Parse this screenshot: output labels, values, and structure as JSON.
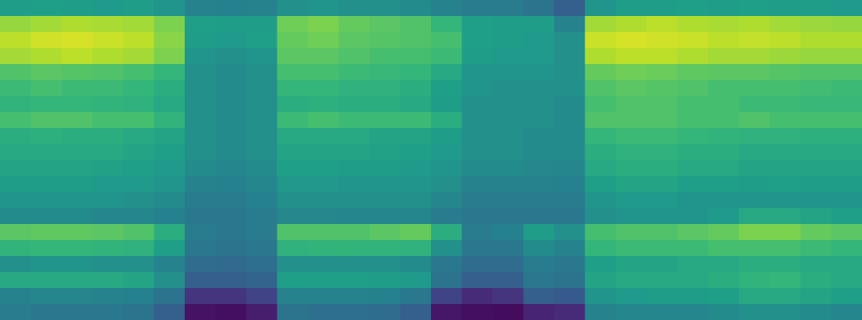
{
  "chart_data": {
    "type": "heatmap",
    "tick_labels": false,
    "zlim": [
      0,
      1
    ],
    "z": [
      [
        0.55,
        0.56,
        0.55,
        0.54,
        0.55,
        0.52,
        0.45,
        0.44,
        0.45,
        0.5,
        0.52,
        0.5,
        0.5,
        0.48,
        0.45,
        0.42,
        0.42,
        0.38,
        0.3,
        0.52,
        0.55,
        0.55,
        0.56,
        0.55,
        0.56,
        0.55,
        0.55,
        0.54
      ],
      [
        0.84,
        0.86,
        0.88,
        0.87,
        0.86,
        0.8,
        0.56,
        0.55,
        0.55,
        0.78,
        0.8,
        0.76,
        0.74,
        0.72,
        0.66,
        0.56,
        0.55,
        0.55,
        0.45,
        0.86,
        0.88,
        0.9,
        0.88,
        0.87,
        0.88,
        0.86,
        0.85,
        0.84
      ],
      [
        0.9,
        0.93,
        0.94,
        0.92,
        0.9,
        0.82,
        0.55,
        0.54,
        0.56,
        0.76,
        0.78,
        0.74,
        0.73,
        0.72,
        0.7,
        0.56,
        0.55,
        0.54,
        0.5,
        0.92,
        0.94,
        0.93,
        0.92,
        0.9,
        0.91,
        0.9,
        0.88,
        0.88
      ],
      [
        0.86,
        0.88,
        0.9,
        0.88,
        0.86,
        0.8,
        0.52,
        0.5,
        0.52,
        0.74,
        0.74,
        0.72,
        0.7,
        0.7,
        0.68,
        0.55,
        0.54,
        0.54,
        0.5,
        0.88,
        0.9,
        0.9,
        0.88,
        0.86,
        0.86,
        0.85,
        0.84,
        0.84
      ],
      [
        0.72,
        0.74,
        0.73,
        0.72,
        0.7,
        0.66,
        0.5,
        0.48,
        0.5,
        0.7,
        0.7,
        0.68,
        0.67,
        0.66,
        0.6,
        0.52,
        0.52,
        0.52,
        0.5,
        0.76,
        0.78,
        0.77,
        0.75,
        0.74,
        0.74,
        0.73,
        0.72,
        0.72
      ],
      [
        0.68,
        0.7,
        0.68,
        0.68,
        0.66,
        0.62,
        0.5,
        0.48,
        0.5,
        0.66,
        0.66,
        0.64,
        0.64,
        0.62,
        0.56,
        0.52,
        0.5,
        0.5,
        0.5,
        0.72,
        0.74,
        0.73,
        0.72,
        0.7,
        0.7,
        0.7,
        0.69,
        0.68
      ],
      [
        0.65,
        0.66,
        0.66,
        0.65,
        0.64,
        0.6,
        0.5,
        0.48,
        0.5,
        0.62,
        0.63,
        0.62,
        0.62,
        0.6,
        0.55,
        0.5,
        0.5,
        0.5,
        0.48,
        0.7,
        0.72,
        0.72,
        0.7,
        0.7,
        0.68,
        0.68,
        0.67,
        0.67
      ],
      [
        0.7,
        0.72,
        0.72,
        0.7,
        0.7,
        0.65,
        0.5,
        0.48,
        0.5,
        0.68,
        0.7,
        0.68,
        0.68,
        0.68,
        0.62,
        0.5,
        0.5,
        0.5,
        0.48,
        0.72,
        0.72,
        0.72,
        0.7,
        0.7,
        0.72,
        0.7,
        0.7,
        0.7
      ],
      [
        0.62,
        0.63,
        0.62,
        0.62,
        0.6,
        0.58,
        0.5,
        0.48,
        0.5,
        0.6,
        0.6,
        0.6,
        0.58,
        0.58,
        0.55,
        0.5,
        0.5,
        0.48,
        0.48,
        0.66,
        0.68,
        0.68,
        0.66,
        0.65,
        0.64,
        0.64,
        0.63,
        0.63
      ],
      [
        0.6,
        0.6,
        0.6,
        0.6,
        0.58,
        0.56,
        0.5,
        0.48,
        0.5,
        0.58,
        0.58,
        0.58,
        0.57,
        0.56,
        0.54,
        0.5,
        0.5,
        0.48,
        0.48,
        0.62,
        0.64,
        0.64,
        0.62,
        0.62,
        0.6,
        0.6,
        0.6,
        0.6
      ],
      [
        0.58,
        0.58,
        0.58,
        0.57,
        0.56,
        0.54,
        0.48,
        0.46,
        0.48,
        0.56,
        0.56,
        0.55,
        0.55,
        0.54,
        0.52,
        0.48,
        0.48,
        0.47,
        0.46,
        0.6,
        0.62,
        0.62,
        0.6,
        0.6,
        0.58,
        0.58,
        0.58,
        0.58
      ],
      [
        0.55,
        0.55,
        0.55,
        0.54,
        0.54,
        0.52,
        0.45,
        0.44,
        0.46,
        0.53,
        0.53,
        0.52,
        0.52,
        0.52,
        0.5,
        0.45,
        0.45,
        0.45,
        0.44,
        0.56,
        0.58,
        0.58,
        0.56,
        0.56,
        0.55,
        0.56,
        0.55,
        0.55
      ],
      [
        0.52,
        0.52,
        0.52,
        0.52,
        0.5,
        0.48,
        0.42,
        0.42,
        0.44,
        0.5,
        0.5,
        0.5,
        0.5,
        0.5,
        0.46,
        0.42,
        0.42,
        0.42,
        0.42,
        0.52,
        0.54,
        0.54,
        0.52,
        0.52,
        0.52,
        0.52,
        0.52,
        0.52
      ],
      [
        0.48,
        0.48,
        0.48,
        0.46,
        0.46,
        0.44,
        0.4,
        0.4,
        0.42,
        0.47,
        0.47,
        0.46,
        0.46,
        0.46,
        0.42,
        0.4,
        0.4,
        0.4,
        0.4,
        0.5,
        0.52,
        0.52,
        0.52,
        0.54,
        0.6,
        0.6,
        0.58,
        0.56
      ],
      [
        0.74,
        0.75,
        0.75,
        0.74,
        0.72,
        0.62,
        0.42,
        0.4,
        0.42,
        0.72,
        0.72,
        0.72,
        0.74,
        0.76,
        0.62,
        0.42,
        0.44,
        0.55,
        0.5,
        0.7,
        0.72,
        0.72,
        0.74,
        0.76,
        0.8,
        0.8,
        0.76,
        0.74
      ],
      [
        0.65,
        0.66,
        0.66,
        0.65,
        0.64,
        0.56,
        0.4,
        0.38,
        0.4,
        0.64,
        0.65,
        0.65,
        0.65,
        0.64,
        0.5,
        0.4,
        0.4,
        0.48,
        0.45,
        0.66,
        0.68,
        0.68,
        0.68,
        0.7,
        0.7,
        0.7,
        0.68,
        0.66
      ],
      [
        0.5,
        0.52,
        0.52,
        0.5,
        0.5,
        0.45,
        0.35,
        0.34,
        0.36,
        0.5,
        0.5,
        0.5,
        0.5,
        0.48,
        0.4,
        0.35,
        0.35,
        0.42,
        0.4,
        0.56,
        0.58,
        0.58,
        0.6,
        0.6,
        0.62,
        0.62,
        0.6,
        0.6
      ],
      [
        0.6,
        0.6,
        0.6,
        0.6,
        0.58,
        0.5,
        0.3,
        0.3,
        0.32,
        0.56,
        0.56,
        0.56,
        0.55,
        0.54,
        0.38,
        0.3,
        0.3,
        0.4,
        0.38,
        0.58,
        0.6,
        0.6,
        0.6,
        0.62,
        0.65,
        0.66,
        0.62,
        0.6
      ],
      [
        0.45,
        0.46,
        0.46,
        0.45,
        0.44,
        0.38,
        0.15,
        0.15,
        0.2,
        0.45,
        0.45,
        0.45,
        0.44,
        0.4,
        0.2,
        0.12,
        0.15,
        0.3,
        0.28,
        0.52,
        0.54,
        0.55,
        0.55,
        0.56,
        0.6,
        0.6,
        0.58,
        0.56
      ],
      [
        0.42,
        0.4,
        0.4,
        0.4,
        0.38,
        0.3,
        0.05,
        0.04,
        0.08,
        0.38,
        0.36,
        0.36,
        0.35,
        0.3,
        0.06,
        0.04,
        0.03,
        0.1,
        0.12,
        0.45,
        0.46,
        0.46,
        0.46,
        0.48,
        0.5,
        0.5,
        0.48,
        0.46
      ]
    ]
  }
}
